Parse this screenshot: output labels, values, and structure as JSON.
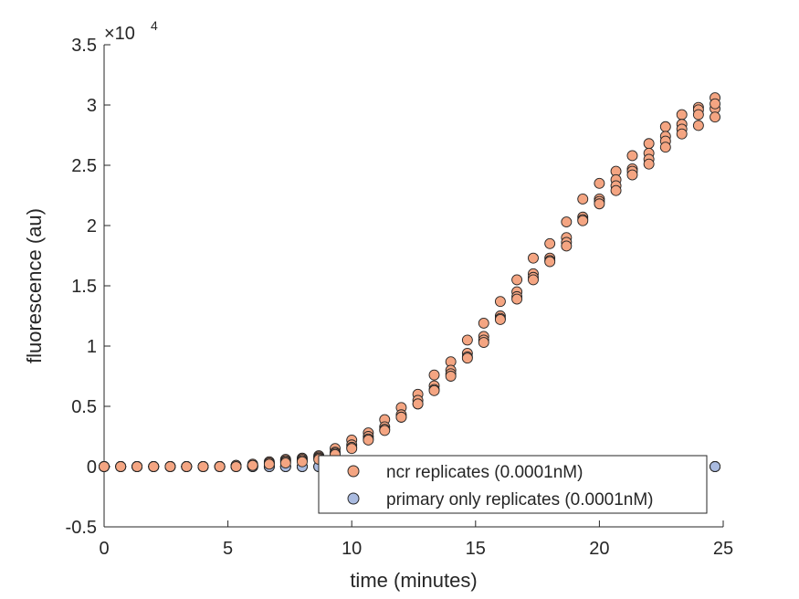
{
  "chart_data": {
    "type": "scatter",
    "title": "",
    "xlabel": "time (minutes)",
    "ylabel": "fluorescence (au)",
    "xlim": [
      0,
      25
    ],
    "ylim": [
      -0.5,
      3.5
    ],
    "y_exponent_label": "×10",
    "y_exponent": "4",
    "xticks": [
      "0",
      "5",
      "10",
      "15",
      "20",
      "25"
    ],
    "yticks": [
      "-0.5",
      "0",
      "0.5",
      "1",
      "1.5",
      "2",
      "2.5",
      "3",
      "3.5"
    ],
    "grid": false,
    "legend_position": "bottom-center",
    "times": [
      0,
      0.67,
      1.33,
      2.0,
      2.67,
      3.33,
      4.0,
      4.67,
      5.33,
      6.0,
      6.67,
      7.33,
      8.0,
      8.67,
      9.33,
      10.0,
      10.67,
      11.33,
      12.0,
      12.67,
      13.33,
      14.0,
      14.67,
      15.33,
      16.0,
      16.67,
      17.33,
      18.0,
      18.67,
      19.33,
      20.0,
      20.67,
      21.33,
      22.0,
      22.67,
      23.33,
      24.0,
      24.67
    ],
    "series": [
      {
        "name": "ncr replicates (0.0001nM)",
        "color": "#f4a582",
        "replicates": [
          [
            0,
            0,
            0,
            0,
            0,
            0,
            0,
            0,
            0.01,
            0.02,
            0.04,
            0.06,
            0.07,
            0.09,
            0.15,
            0.22,
            0.28,
            0.39,
            0.49,
            0.6,
            0.76,
            0.87,
            1.05,
            1.19,
            1.37,
            1.55,
            1.73,
            1.85,
            2.03,
            2.22,
            2.35,
            2.45,
            2.58,
            2.68,
            2.82,
            2.92,
            2.98,
            3.06
          ],
          [
            0,
            0,
            0,
            0,
            0,
            0,
            0,
            0,
            0.01,
            0.01,
            0.03,
            0.05,
            0.06,
            0.08,
            0.12,
            0.18,
            0.25,
            0.33,
            0.43,
            0.55,
            0.67,
            0.8,
            0.94,
            1.08,
            1.25,
            1.45,
            1.6,
            1.73,
            1.9,
            2.07,
            2.22,
            2.38,
            2.47,
            2.6,
            2.74,
            2.84,
            2.96,
            2.97
          ],
          [
            0,
            0,
            0,
            0,
            0,
            0,
            0,
            0,
            0.01,
            0.01,
            0.03,
            0.04,
            0.05,
            0.07,
            0.11,
            0.16,
            0.23,
            0.31,
            0.41,
            0.52,
            0.64,
            0.77,
            0.91,
            1.05,
            1.23,
            1.41,
            1.57,
            1.71,
            1.86,
            2.05,
            2.2,
            2.33,
            2.45,
            2.55,
            2.7,
            2.8,
            2.92,
            2.9
          ],
          [
            0,
            0,
            0,
            0,
            0,
            0,
            0,
            0,
            0,
            0.01,
            0.02,
            0.03,
            0.04,
            0.06,
            0.1,
            0.15,
            0.22,
            0.3,
            0.41,
            0.52,
            0.63,
            0.75,
            0.9,
            1.03,
            1.22,
            1.39,
            1.55,
            1.7,
            1.83,
            2.04,
            2.18,
            2.29,
            2.42,
            2.51,
            2.65,
            2.76,
            2.83,
            3.01
          ]
        ]
      },
      {
        "name": "primary only replicates (0.0001nM)",
        "color": "#aabbe0",
        "replicates": [
          [
            0,
            0,
            0,
            0,
            0,
            0,
            0,
            0,
            0,
            0,
            0,
            0,
            0,
            0,
            0,
            0,
            0,
            0,
            0,
            0,
            0,
            0,
            0,
            0,
            0,
            0,
            0,
            0,
            0,
            0,
            0,
            0,
            0,
            0,
            0,
            0,
            0,
            0
          ],
          [
            0,
            0,
            0,
            0,
            0,
            0,
            0,
            0,
            0,
            0,
            0,
            0,
            0,
            0,
            0,
            0,
            0,
            0,
            0,
            0,
            0,
            0,
            0,
            0,
            0,
            0,
            0,
            0,
            0,
            0,
            0,
            0,
            0,
            0,
            0,
            0,
            0,
            0
          ],
          [
            0,
            0,
            0,
            0,
            0,
            0,
            0,
            0,
            0,
            0,
            0,
            0,
            0,
            0,
            0,
            0,
            0,
            0,
            0,
            0,
            0,
            0,
            0,
            0,
            0,
            0,
            0,
            0,
            0,
            0,
            0,
            0,
            0,
            0,
            0,
            0,
            0,
            0
          ],
          [
            0,
            0,
            0,
            0,
            0,
            0,
            0,
            0,
            0,
            0,
            0,
            0,
            0,
            0,
            0,
            0,
            0,
            0,
            0,
            0,
            0,
            0,
            0,
            0,
            0,
            0,
            0,
            0,
            0,
            0,
            0,
            0,
            0,
            0,
            0,
            0,
            0,
            0
          ]
        ]
      }
    ]
  }
}
